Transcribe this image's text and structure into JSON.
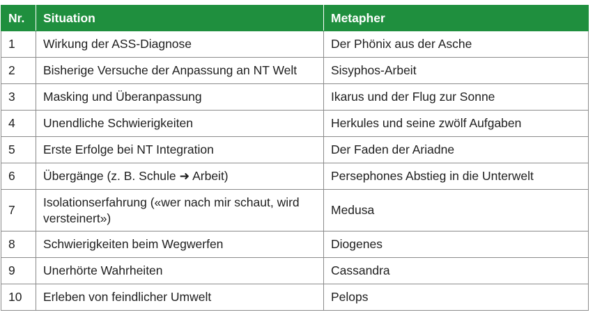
{
  "table": {
    "headers": [
      "Nr.",
      "Situation",
      "Metapher"
    ],
    "rows": [
      [
        "1",
        "Wirkung der ASS-Diagnose",
        "Der Phönix aus der Asche"
      ],
      [
        "2",
        "Bisherige Versuche der Anpassung an NT Welt",
        "Sisyphos-Arbeit"
      ],
      [
        "3",
        "Masking und Überanpassung",
        "Ikarus und der Flug zur Sonne"
      ],
      [
        "4",
        "Unendliche Schwierigkeiten",
        "Herkules und seine zwölf Aufgaben"
      ],
      [
        "5",
        "Erste Erfolge bei NT Integration",
        "Der Faden der Ariadne"
      ],
      [
        "6",
        "Übergänge (z. B. Schule ➜ Arbeit)",
        "Persephones Abstieg in die Unterwelt"
      ],
      [
        "7",
        "Isolationserfahrung («wer nach mir schaut, wird versteinert»)",
        "Medusa"
      ],
      [
        "8",
        "Schwierigkeiten beim Wegwerfen",
        "Diogenes"
      ],
      [
        "9",
        "Unerhörte Wahrheiten",
        "Cassandra"
      ],
      [
        "10",
        "Erleben von feindlicher Umwelt",
        "Pelops"
      ]
    ]
  },
  "colors": {
    "header_bg": "#1f8f3e",
    "header_text": "#ffffff",
    "border": "#8a8a8a"
  }
}
